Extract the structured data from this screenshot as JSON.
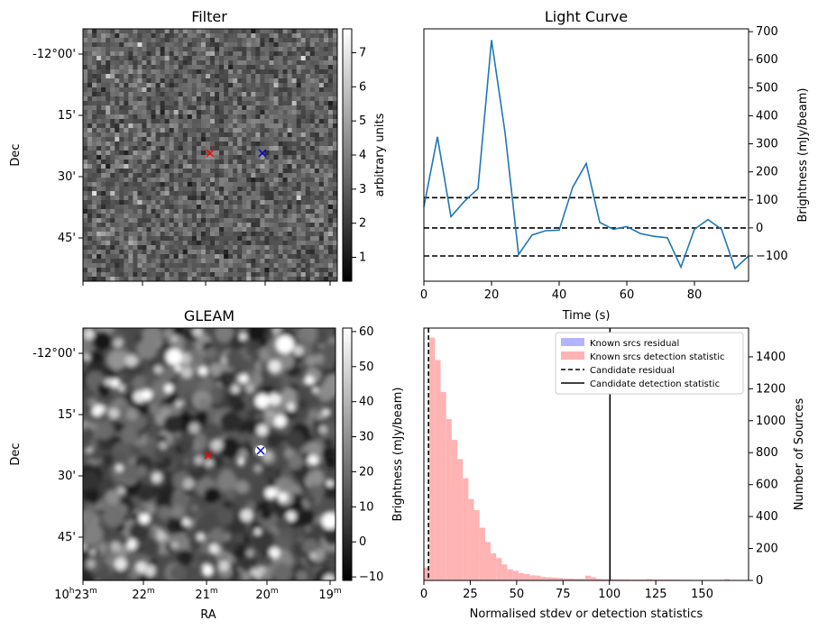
{
  "panels": {
    "filter": {
      "title": "Filter",
      "ylabel": "Dec",
      "dec_ticks": [
        "-12°00'",
        "15'",
        "30'",
        "45'"
      ],
      "colorbar": {
        "label": "arbitrary units",
        "ticks": [
          "1",
          "2",
          "3",
          "4",
          "5",
          "6",
          "7"
        ],
        "range": [
          0.3,
          7.7
        ]
      },
      "markers": [
        {
          "name": "red-cross-marker",
          "color": "#ff0000"
        },
        {
          "name": "blue-cross-marker",
          "color": "#0000cc"
        }
      ]
    },
    "gleam": {
      "title": "GLEAM",
      "ylabel": "Dec",
      "xlabel": "RA",
      "dec_ticks": [
        "-12°00'",
        "15'",
        "30'",
        "45'"
      ],
      "ra_ticks": [
        {
          "main": "10",
          "sup1": "h",
          "num": "23",
          "sup2": "m"
        },
        {
          "main": "22",
          "sup2": "m"
        },
        {
          "main": "21",
          "sup2": "m"
        },
        {
          "main": "20",
          "sup2": "m"
        },
        {
          "main": "19",
          "sup2": "m"
        }
      ],
      "colorbar": {
        "ticks": [
          "−10",
          "0",
          "10",
          "20",
          "30",
          "40",
          "50",
          "60"
        ],
        "range": [
          -11,
          61
        ]
      },
      "markers": [
        {
          "name": "red-cross-marker",
          "color": "#ff0000"
        },
        {
          "name": "blue-cross-marker",
          "color": "#0000cc"
        }
      ]
    }
  },
  "chart_data": [
    {
      "type": "line",
      "title": "Light Curve",
      "xlabel": "Time (s)",
      "ylabel": "Brightness (mJy/beam)",
      "xlim": [
        0,
        96
      ],
      "ylim": [
        -190,
        710
      ],
      "xticks": [
        0,
        20,
        40,
        60,
        80
      ],
      "yticks": [
        -100,
        0,
        100,
        200,
        300,
        400,
        500,
        600,
        700
      ],
      "x": [
        0,
        4,
        8,
        12,
        16,
        20,
        24,
        28,
        32,
        36,
        40,
        44,
        48,
        52,
        56,
        60,
        64,
        68,
        72,
        76,
        80,
        84,
        88,
        92,
        96
      ],
      "y": [
        75,
        325,
        40,
        95,
        140,
        670,
        340,
        -95,
        -25,
        -10,
        -8,
        145,
        230,
        20,
        -5,
        5,
        -20,
        -30,
        -35,
        -140,
        -5,
        30,
        -5,
        -145,
        -100
      ],
      "series": [
        {
          "name": "",
          "color": "#1f77b4"
        }
      ],
      "hlines": [
        {
          "y": 108,
          "style": "dashed"
        },
        {
          "y": 0,
          "style": "dashed"
        },
        {
          "y": -100,
          "style": "dashed"
        }
      ]
    },
    {
      "type": "bar",
      "title": "",
      "xlabel": "Normalised stdev or detection statistics",
      "ylabel": "Brightness (mJy/beam)",
      "ylabel_right": "Number of Sources",
      "xlim": [
        0,
        175
      ],
      "ylim": [
        0,
        1580
      ],
      "xticks": [
        0,
        25,
        50,
        75,
        100,
        125,
        150
      ],
      "yticks": [
        0,
        200,
        400,
        600,
        800,
        1000,
        1200,
        1400
      ],
      "bin_width": 3,
      "bin_start": 0,
      "series": [
        {
          "name": "Known srcs residual",
          "color": "#b3b3ff",
          "values": [
            40
          ]
        },
        {
          "name": "Known srcs detection statistic",
          "color": "#ffb3b3",
          "values": [
            80,
            1520,
            1380,
            1180,
            1010,
            880,
            760,
            640,
            510,
            440,
            330,
            240,
            170,
            140,
            100,
            70,
            60,
            45,
            40,
            32,
            30,
            22,
            20,
            18,
            15,
            12,
            12,
            10,
            10,
            30,
            20,
            10,
            8,
            7,
            7,
            6,
            6,
            5,
            5,
            5,
            8,
            5,
            5,
            5,
            5,
            5,
            4,
            4,
            3,
            3,
            3,
            3,
            3,
            3,
            8,
            3,
            3,
            3
          ]
        }
      ],
      "vlines": [
        {
          "name": "Candidate residual",
          "x": 2.5,
          "style": "dashed"
        },
        {
          "name": "Candidate detection statistic",
          "x": 100.3,
          "style": "solid"
        }
      ],
      "legend_placement": "top-right"
    }
  ]
}
